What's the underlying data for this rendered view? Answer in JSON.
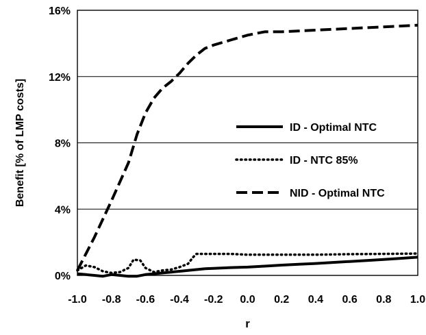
{
  "chart_data": {
    "type": "line",
    "xlabel": "r",
    "ylabel": "Benefit [% of LMP costs]",
    "xlim": [
      -1.0,
      1.0
    ],
    "ylim": [
      0,
      16
    ],
    "x_ticks": [
      "-1.0",
      "-0.8",
      "-0.6",
      "-0.4",
      "-0.2",
      "0.0",
      "0.2",
      "0.4",
      "0.6",
      "0.8",
      "1.0"
    ],
    "y_ticks": [
      "0%",
      "4%",
      "8%",
      "12%",
      "16%"
    ],
    "grid": "horizontal major gridlines",
    "legend_position": "right-middle",
    "series": [
      {
        "name": "ID - Optimal NTC",
        "style": "solid",
        "color": "#000000",
        "x": [
          -1.0,
          -0.95,
          -0.9,
          -0.85,
          -0.8,
          -0.75,
          -0.7,
          -0.65,
          -0.6,
          -0.55,
          -0.5,
          -0.45,
          -0.4,
          -0.35,
          -0.3,
          -0.25,
          -0.2,
          -0.1,
          0.0,
          0.1,
          0.2,
          0.3,
          0.4,
          0.5,
          0.6,
          0.7,
          0.8,
          0.9,
          1.0
        ],
        "y": [
          0.1,
          0.05,
          0.0,
          -0.05,
          0.05,
          0.0,
          -0.05,
          -0.05,
          0.05,
          0.1,
          0.15,
          0.2,
          0.25,
          0.3,
          0.35,
          0.4,
          0.42,
          0.47,
          0.5,
          0.56,
          0.62,
          0.67,
          0.72,
          0.78,
          0.84,
          0.9,
          0.96,
          1.03,
          1.1
        ]
      },
      {
        "name": "ID - NTC 85%",
        "style": "dotted",
        "color": "#000000",
        "x": [
          -1.0,
          -0.95,
          -0.9,
          -0.85,
          -0.8,
          -0.75,
          -0.7,
          -0.67,
          -0.63,
          -0.6,
          -0.55,
          -0.5,
          -0.45,
          -0.4,
          -0.35,
          -0.32,
          -0.3,
          -0.2,
          -0.1,
          0.0,
          0.2,
          0.4,
          0.6,
          0.8,
          1.0
        ],
        "y": [
          0.3,
          0.6,
          0.5,
          0.25,
          0.15,
          0.2,
          0.45,
          0.95,
          0.9,
          0.45,
          0.2,
          0.3,
          0.35,
          0.5,
          0.7,
          1.1,
          1.3,
          1.3,
          1.3,
          1.25,
          1.25,
          1.25,
          1.28,
          1.3,
          1.32
        ]
      },
      {
        "name": "NID - Optimal NTC",
        "style": "dashed",
        "color": "#000000",
        "x": [
          -1.0,
          -0.9,
          -0.8,
          -0.7,
          -0.65,
          -0.6,
          -0.55,
          -0.5,
          -0.45,
          -0.4,
          -0.35,
          -0.3,
          -0.25,
          -0.2,
          -0.1,
          0.0,
          0.1,
          0.2,
          0.4,
          0.6,
          0.8,
          1.0
        ],
        "y": [
          0.3,
          2.3,
          4.5,
          6.8,
          8.5,
          9.8,
          10.7,
          11.3,
          11.7,
          12.2,
          12.8,
          13.3,
          13.7,
          13.9,
          14.2,
          14.5,
          14.7,
          14.7,
          14.8,
          14.9,
          15.0,
          15.1
        ]
      }
    ]
  }
}
